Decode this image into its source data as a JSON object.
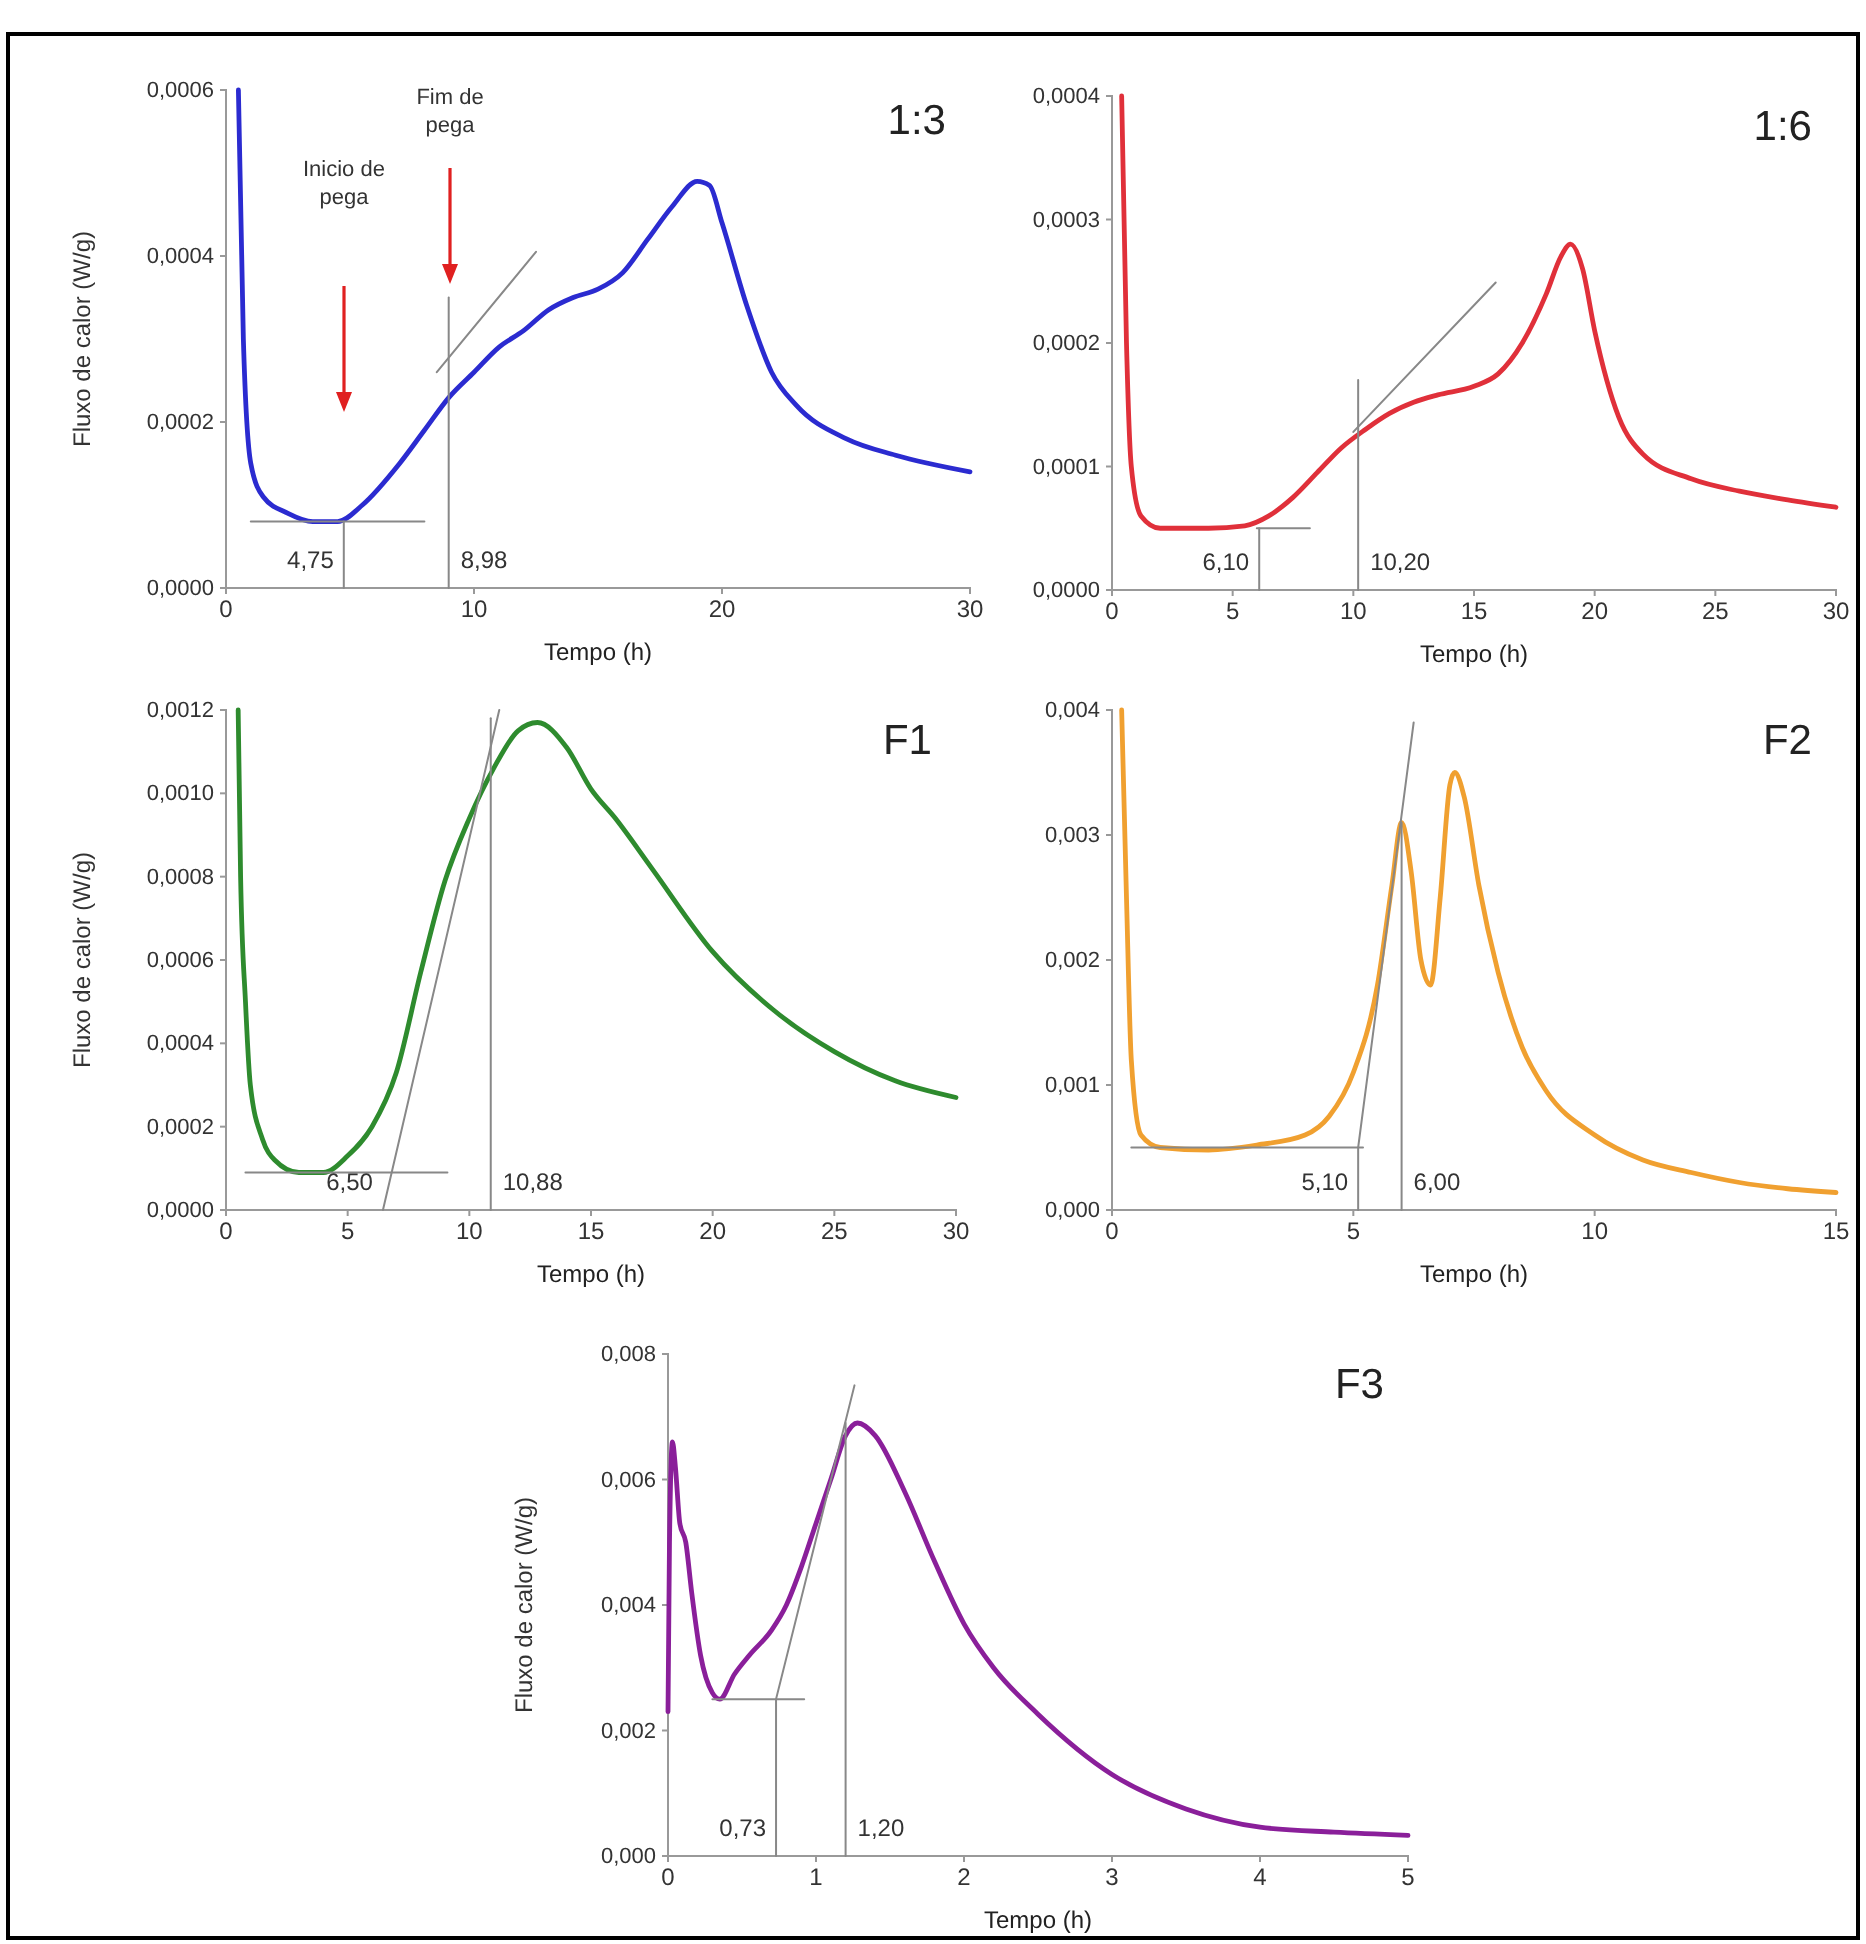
{
  "chart_data": [
    {
      "type": "line",
      "title": "1:3",
      "xlabel": "Tempo (h)",
      "ylabel": "Fluxo de calor (W/g)",
      "xlim": [
        0,
        30
      ],
      "xticks": [
        0,
        10,
        20,
        30
      ],
      "ylim": [
        0,
        0.0006
      ],
      "yticks": [
        {
          "value": 0,
          "label": "0,0000"
        },
        {
          "value": 0.0002,
          "label": "0,0002"
        },
        {
          "value": 0.0004,
          "label": "0,0004"
        },
        {
          "value": 0.0006,
          "label": "0,0006"
        }
      ],
      "series": [
        {
          "color": "#2b2bd0",
          "x": [
            0.5,
            0.7,
            1,
            1.5,
            2.5,
            3.5,
            4.5,
            5.5,
            7,
            8,
            9,
            10,
            11,
            12,
            13,
            14,
            15,
            16,
            17,
            18,
            19,
            19.5,
            20,
            21,
            22,
            23,
            25,
            27,
            30
          ],
          "values": [
            0.0006,
            0.0003,
            0.00015,
            0.00011,
            9e-05,
            8e-05,
            8e-05,
            0.0001,
            0.00015,
            0.00019,
            0.00023,
            0.00026,
            0.00029,
            0.00031,
            0.000335,
            0.00035,
            0.00036,
            0.00038,
            0.00042,
            0.00046,
            0.00049,
            0.000485,
            0.00044,
            0.00034,
            0.00026,
            0.00022,
            0.00018,
            0.00016,
            0.00014
          ]
        },
        {
          "color": "#888888",
          "x": [
            1,
            8
          ],
          "values": [
            8e-05,
            8e-05
          ]
        },
        {
          "color": "#888888",
          "x": [
            4.75,
            4.75
          ],
          "values": [
            0,
            8e-05
          ]
        },
        {
          "color": "#888888",
          "x": [
            8.98,
            8.98
          ],
          "values": [
            0,
            0.00035
          ]
        },
        {
          "color": "#888888",
          "x": [
            8.5,
            12.5
          ],
          "values": [
            0.00026,
            0.000405
          ]
        }
      ],
      "annotations": [
        {
          "text": "4,75",
          "x": 4.75,
          "y": 0
        },
        {
          "text": "8,98",
          "x": 8.98,
          "y": 0
        },
        "Inicio de\npega",
        "Fim de\npega"
      ]
    },
    {
      "type": "line",
      "title": "1:6",
      "xlabel": "Tempo (h)",
      "xlim": [
        0,
        30
      ],
      "xticks": [
        0,
        5,
        10,
        15,
        20,
        25,
        30
      ],
      "ylim": [
        0,
        0.0004
      ],
      "yticks": [
        {
          "value": 0,
          "label": "0,0000"
        },
        {
          "value": 0.0001,
          "label": "0,0001"
        },
        {
          "value": 0.0002,
          "label": "0,0002"
        },
        {
          "value": 0.0003,
          "label": "0,0003"
        },
        {
          "value": 0.0004,
          "label": "0,0004"
        }
      ],
      "series": [
        {
          "color": "#e0303a",
          "x": [
            0.4,
            0.6,
            0.8,
            1.2,
            2,
            4,
            5.5,
            6.5,
            7.5,
            8.5,
            9.5,
            10.5,
            11.5,
            12.5,
            13.5,
            15,
            16,
            17,
            18,
            18.6,
            19,
            19.5,
            20,
            21,
            22,
            24,
            26,
            28,
            30
          ],
          "values": [
            0.0004,
            0.0002,
            0.0001,
            6e-05,
            5e-05,
            5e-05,
            5.2e-05,
            6e-05,
            7.5e-05,
            9.5e-05,
            0.000115,
            0.00013,
            0.000143,
            0.000152,
            0.000158,
            0.000165,
            0.000175,
            0.0002,
            0.00024,
            0.00027,
            0.00028,
            0.00026,
            0.00021,
            0.00014,
            0.00011,
            9e-05,
            8e-05,
            7.3e-05,
            6.7e-05
          ]
        },
        {
          "color": "#888888",
          "x": [
            6,
            8.2
          ],
          "values": [
            5e-05,
            5e-05
          ]
        },
        {
          "color": "#888888",
          "x": [
            6.1,
            6.1
          ],
          "values": [
            0,
            5e-05
          ]
        },
        {
          "color": "#888888",
          "x": [
            10.2,
            10.2
          ],
          "values": [
            0,
            0.00017
          ]
        },
        {
          "color": "#888888",
          "x": [
            10,
            15.9
          ],
          "values": [
            0.000128,
            0.000249
          ]
        }
      ],
      "annotations": [
        {
          "text": "6,10",
          "x": 6.1,
          "y": 0
        },
        {
          "text": "10,20",
          "x": 10.2,
          "y": 0
        }
      ]
    },
    {
      "type": "line",
      "title": "F1",
      "xlabel": "Tempo (h)",
      "ylabel": "Fluxo de calor (W/g)",
      "xlim": [
        0,
        30
      ],
      "xticks": [
        0,
        5,
        10,
        15,
        20,
        25,
        30
      ],
      "ylim": [
        0,
        0.0012
      ],
      "yticks": [
        {
          "value": 0,
          "label": "0,0000"
        },
        {
          "value": 0.0002,
          "label": "0,0002"
        },
        {
          "value": 0.0004,
          "label": "0,0004"
        },
        {
          "value": 0.0006,
          "label": "0,0006"
        },
        {
          "value": 0.0008,
          "label": "0,0008"
        },
        {
          "value": 0.001,
          "label": "0,0010"
        },
        {
          "value": 0.0012,
          "label": "0,0012"
        }
      ],
      "series": [
        {
          "color": "#2e8b2e",
          "x": [
            0.5,
            0.6,
            0.8,
            1,
            1.5,
            2,
            3,
            4,
            5,
            6,
            7,
            8,
            9,
            10,
            11,
            12,
            12.8,
            14,
            15,
            16,
            17.5,
            20,
            22.5,
            25,
            27.5,
            30
          ],
          "values": [
            0.0012,
            0.0008,
            0.0005,
            0.0003,
            0.00017,
            0.00012,
            9e-05,
            9e-05,
            0.00013,
            0.0002,
            0.00033,
            0.00057,
            0.00079,
            0.00094,
            0.00106,
            0.00115,
            0.00117,
            0.00111,
            0.00101,
            0.00094,
            0.00082,
            0.00062,
            0.00048,
            0.00038,
            0.00031,
            0.00027
          ]
        },
        {
          "color": "#888888",
          "x": [
            0.8,
            9.1
          ],
          "values": [
            9e-05,
            9e-05
          ]
        },
        {
          "color": "#888888",
          "x": [
            6.45,
            11.23
          ],
          "values": [
            0,
            0.0012
          ]
        },
        {
          "color": "#888888",
          "x": [
            10.88,
            10.88
          ],
          "values": [
            0,
            0.00118
          ]
        }
      ],
      "annotations": [
        {
          "text": "6,50",
          "x": 6.45,
          "y": 0
        },
        {
          "text": "10,88",
          "x": 10.88,
          "y": 0
        }
      ]
    },
    {
      "type": "line",
      "title": "F2",
      "xlabel": "Tempo (h)",
      "xlim": [
        0,
        15
      ],
      "xticks": [
        0,
        5,
        10,
        15
      ],
      "ylim": [
        0,
        0.004
      ],
      "yticks": [
        {
          "value": 0,
          "label": "0,000"
        },
        {
          "value": 0.001,
          "label": "0,001"
        },
        {
          "value": 0.002,
          "label": "0,002"
        },
        {
          "value": 0.003,
          "label": "0,003"
        },
        {
          "value": 0.004,
          "label": "0,004"
        }
      ],
      "series": [
        {
          "color": "#f0a030",
          "x": [
            0.2,
            0.3,
            0.4,
            0.6,
            1,
            2,
            3,
            4,
            4.5,
            5,
            5.5,
            5.8,
            6,
            6.2,
            6.4,
            6.6,
            6.8,
            7,
            7.1,
            7.3,
            7.6,
            8,
            8.5,
            9,
            10,
            11,
            12,
            13,
            14,
            15
          ],
          "values": [
            0.004,
            0.0025,
            0.0012,
            0.0006,
            0.0005,
            0.00048,
            0.00052,
            0.0006,
            0.00075,
            0.0011,
            0.0018,
            0.0026,
            0.0031,
            0.0027,
            0.002,
            0.0018,
            0.0025,
            0.0034,
            0.0035,
            0.0033,
            0.0026,
            0.0019,
            0.0013,
            0.00095,
            0.0006,
            0.0004,
            0.0003,
            0.00022,
            0.00017,
            0.00014
          ]
        },
        {
          "color": "#888888",
          "x": [
            0.4,
            5.2
          ],
          "values": [
            0.0005,
            0.0005
          ]
        },
        {
          "color": "#888888",
          "x": [
            5.1,
            5.1,
            6.25
          ],
          "values": [
            0,
            0.0005,
            0.0039
          ]
        },
        {
          "color": "#888888",
          "x": [
            6,
            6
          ],
          "values": [
            0,
            0.0031
          ]
        }
      ],
      "annotations": [
        {
          "text": "5,10",
          "x": 5.1,
          "y": 0
        },
        {
          "text": "6,00",
          "x": 6,
          "y": 0
        }
      ]
    },
    {
      "type": "line",
      "title": "F3",
      "xlabel": "Tempo (h)",
      "ylabel": "Fluxo de calor (W/g)",
      "xlim": [
        0,
        5
      ],
      "xticks": [
        0,
        1,
        2,
        3,
        4,
        5
      ],
      "ylim": [
        0,
        0.008
      ],
      "yticks": [
        {
          "value": 0,
          "label": "0,000"
        },
        {
          "value": 0.002,
          "label": "0,002"
        },
        {
          "value": 0.004,
          "label": "0,004"
        },
        {
          "value": 0.006,
          "label": "0,006"
        },
        {
          "value": 0.008,
          "label": "0,008"
        }
      ],
      "series": [
        {
          "color": "#8a1f9a",
          "x": [
            0,
            0.01,
            0.03,
            0.05,
            0.08,
            0.12,
            0.16,
            0.22,
            0.3,
            0.35,
            0.45,
            0.55,
            0.7,
            0.8,
            0.9,
            1,
            1.1,
            1.2,
            1.28,
            1.4,
            1.6,
            1.8,
            2,
            2.2,
            2.5,
            3,
            3.5,
            4,
            4.5,
            5
          ],
          "values": [
            0.0023,
            0.005,
            0.0066,
            0.0062,
            0.0053,
            0.005,
            0.0042,
            0.0032,
            0.0026,
            0.0025,
            0.0029,
            0.0032,
            0.0036,
            0.004,
            0.0046,
            0.0053,
            0.006,
            0.0067,
            0.0069,
            0.0067,
            0.0058,
            0.0047,
            0.0037,
            0.003,
            0.00226,
            0.0013,
            0.00075,
            0.00046,
            0.00038,
            0.00033
          ]
        },
        {
          "color": "#888888",
          "x": [
            0.3,
            0.92
          ],
          "values": [
            0.0025,
            0.0025
          ]
        },
        {
          "color": "#888888",
          "x": [
            0.73,
            0.73,
            1.26
          ],
          "values": [
            0,
            0.0025,
            0.0075
          ]
        },
        {
          "color": "#888888",
          "x": [
            1.2,
            1.2
          ],
          "values": [
            0,
            0.0069
          ]
        }
      ],
      "annotations": [
        {
          "text": "0,73",
          "x": 0.73,
          "y": 0
        },
        {
          "text": "1,20",
          "x": 1.2,
          "y": 0
        }
      ]
    }
  ]
}
